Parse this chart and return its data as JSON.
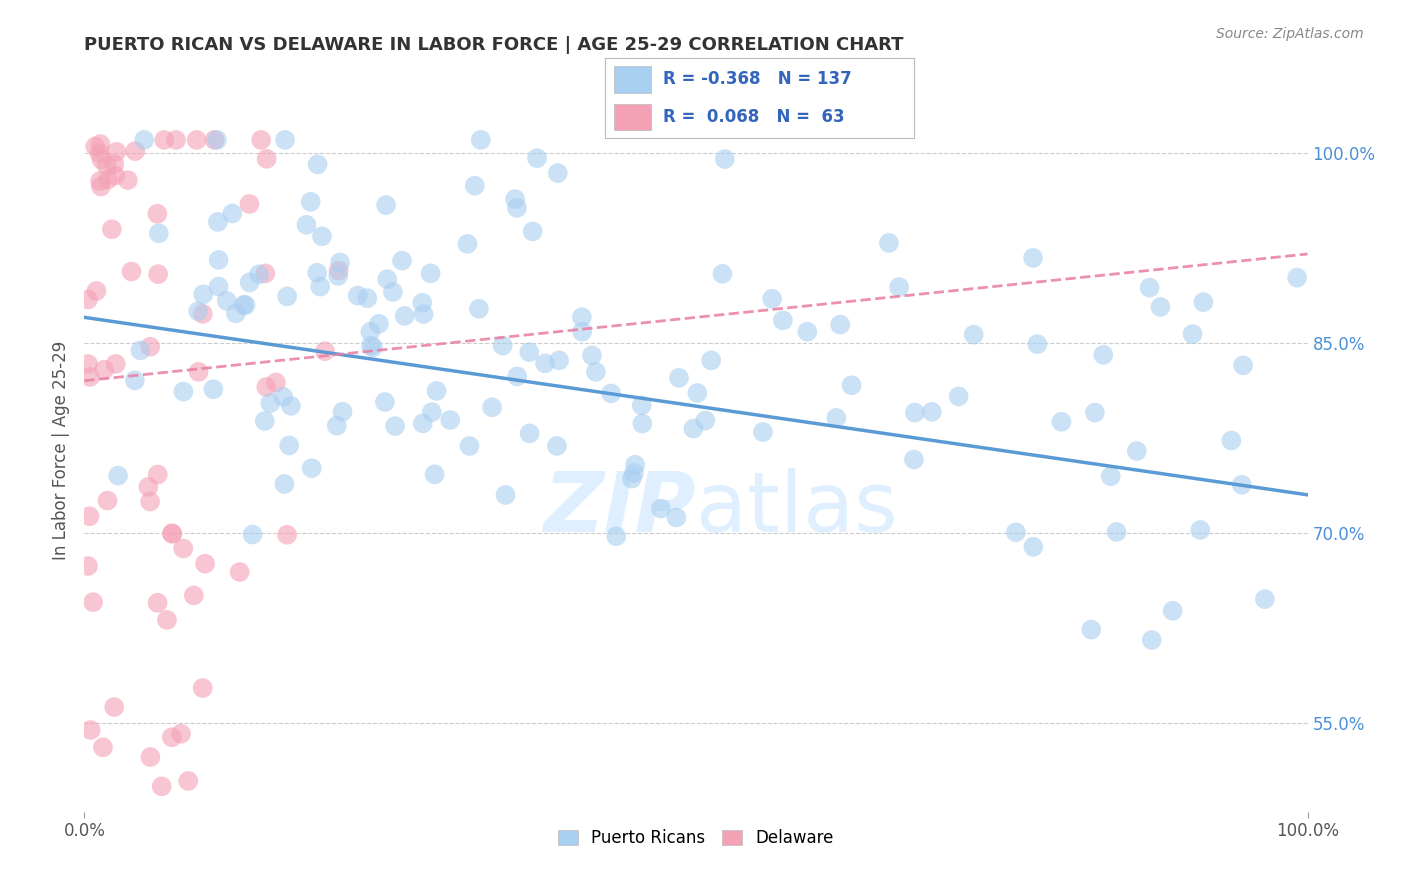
{
  "title": "PUERTO RICAN VS DELAWARE IN LABOR FORCE | AGE 25-29 CORRELATION CHART",
  "source": "Source: ZipAtlas.com",
  "ylabel": "In Labor Force | Age 25-29",
  "xlim": [
    0.0,
    1.0
  ],
  "ylim": [
    0.48,
    1.05
  ],
  "x_tick_labels": [
    "0.0%",
    "100.0%"
  ],
  "y_tick_labels_right": [
    "55.0%",
    "70.0%",
    "85.0%",
    "100.0%"
  ],
  "y_tick_vals_right": [
    0.55,
    0.7,
    0.85,
    1.0
  ],
  "legend_r_blue": "-0.368",
  "legend_n_blue": "137",
  "legend_r_pink": "0.068",
  "legend_n_pink": "63",
  "blue_color": "#A8CEF0",
  "pink_color": "#F4A0B5",
  "blue_line_color": "#5B9BD5",
  "pink_line_color": "#E87DA0",
  "watermark_zip": "ZIP",
  "watermark_atlas": "atlas",
  "background_color": "#FFFFFF",
  "grid_color": "#CCCCCC",
  "title_color": "#333333",
  "axis_label_color": "#555555",
  "right_tick_color": "#4A90D9"
}
